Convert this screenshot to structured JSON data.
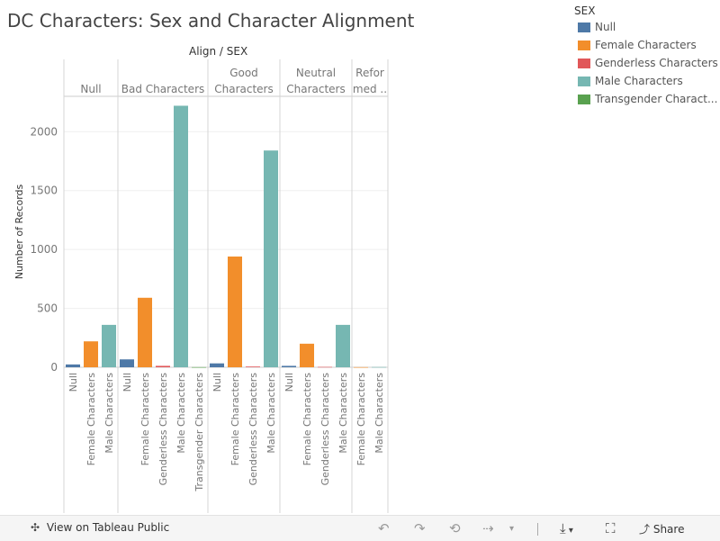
{
  "chart_data": {
    "type": "bar",
    "title": "DC Characters: Sex and Character Alignment",
    "column_header_title": "Align / SEX",
    "ylabel": "Number of Records",
    "ylim": [
      0,
      2300
    ],
    "yticks": [
      0,
      500,
      1000,
      1500,
      2000
    ],
    "grid": true,
    "legend_position": "top-right",
    "legend_title": "SEX",
    "series": [
      {
        "name": "Null",
        "color": "#4e79a7"
      },
      {
        "name": "Female Characters",
        "color": "#f28e2b"
      },
      {
        "name": "Genderless Characters",
        "color": "#e15759"
      },
      {
        "name": "Male Characters",
        "color": "#76b7b2"
      },
      {
        "name": "Transgender Characters",
        "color": "#59a14f"
      }
    ],
    "legend_labels": [
      "Null",
      "Female Characters",
      "Genderless Characters",
      "Male Characters",
      "Transgender Charact..."
    ],
    "panels": [
      {
        "label": [
          "Null"
        ],
        "bars": [
          {
            "sex": "Null",
            "value": 24
          },
          {
            "sex": "Female Characters",
            "value": 220
          },
          {
            "sex": "Male Characters",
            "value": 360
          }
        ]
      },
      {
        "label": [
          "Bad Characters"
        ],
        "bars": [
          {
            "sex": "Null",
            "value": 67
          },
          {
            "sex": "Female Characters",
            "value": 590
          },
          {
            "sex": "Genderless Characters",
            "value": 12
          },
          {
            "sex": "Male Characters",
            "value": 2220
          },
          {
            "sex": "Transgender Characters",
            "value": 1
          }
        ]
      },
      {
        "label": [
          "Good",
          "Characters"
        ],
        "bars": [
          {
            "sex": "Null",
            "value": 33
          },
          {
            "sex": "Female Characters",
            "value": 940
          },
          {
            "sex": "Genderless Characters",
            "value": 6
          },
          {
            "sex": "Male Characters",
            "value": 1840
          }
        ]
      },
      {
        "label": [
          "Neutral",
          "Characters"
        ],
        "bars": [
          {
            "sex": "Null",
            "value": 12
          },
          {
            "sex": "Female Characters",
            "value": 200
          },
          {
            "sex": "Genderless Characters",
            "value": 3
          },
          {
            "sex": "Male Characters",
            "value": 360
          }
        ]
      },
      {
        "label": [
          "Refor",
          "med .."
        ],
        "bars": [
          {
            "sex": "Female Characters",
            "value": 1
          },
          {
            "sex": "Male Characters",
            "value": 2
          }
        ]
      }
    ]
  },
  "toolbar": {
    "view_label": "View on Tableau Public",
    "share_label": "Share",
    "icons": [
      "tableau-logo-icon",
      "undo-icon",
      "redo-icon",
      "revert-icon",
      "refresh-icon",
      "download-icon",
      "fullscreen-icon",
      "share-icon"
    ]
  }
}
